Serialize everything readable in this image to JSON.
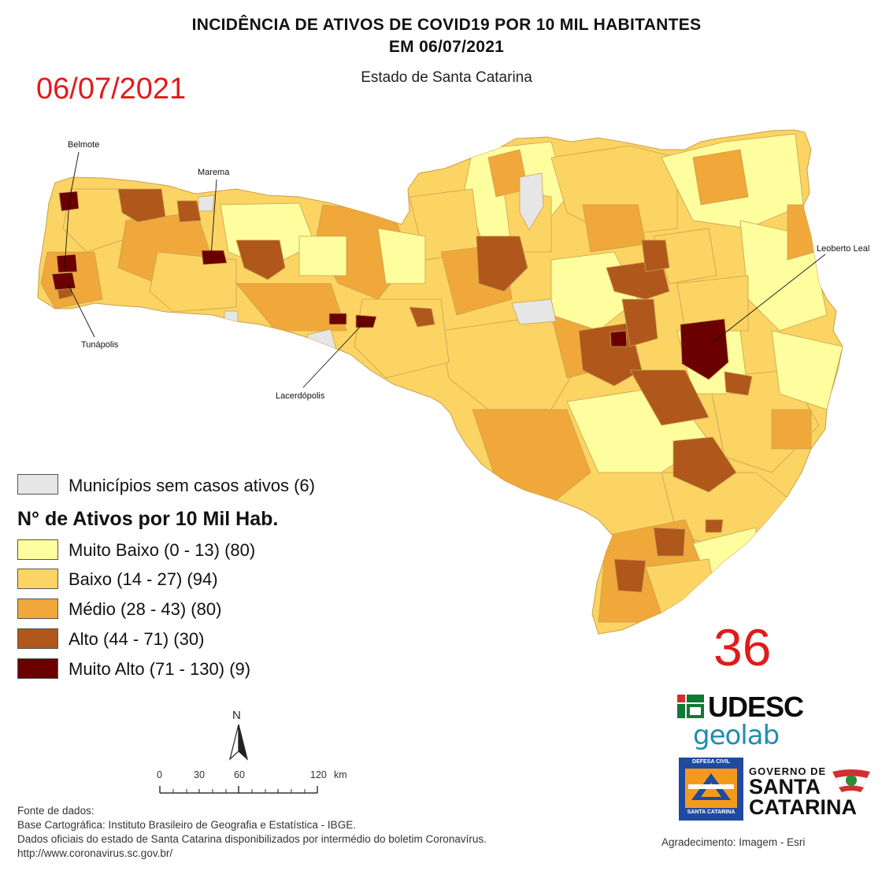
{
  "title_line1": "INCIDÊNCIA DE ATIVOS DE COVID19 POR 10 MIL HABITANTES",
  "title_line2": "EM 06/07/2021",
  "subtitle": "Estado de Santa Catarina",
  "date_stamp": "06/07/2021",
  "big_number": "36",
  "callouts": {
    "belmote": "Belmote",
    "marema": "Marema",
    "leoberto_leal": "Leoberto Leal",
    "tunapolis": "Tunápolis",
    "lacerdopolis": "Lacerdópolis"
  },
  "legend": {
    "no_cases": "Municípios sem casos ativos (6)",
    "heading": "N° de Ativos por 10 Mil Hab.",
    "classes": [
      {
        "label": "Muito Baixo (0 - 13) (80)",
        "color": "#fefe9e"
      },
      {
        "label": "Baixo (14 - 27) (94)",
        "color": "#fbd463"
      },
      {
        "label": "Médio (28 - 43) (80)",
        "color": "#f0a83a"
      },
      {
        "label": "Alto (44 - 71) (30)",
        "color": "#b0581c"
      },
      {
        "label": "Muito Alto (71 - 130) (9)",
        "color": "#6b0000"
      }
    ],
    "no_cases_color": "#e6e6e6"
  },
  "north_label": "N",
  "scale": {
    "t0": "0",
    "t30": "30",
    "t60": "60",
    "t120": "120",
    "unit": "km"
  },
  "logos": {
    "udesc": "UDESC",
    "geolab": "geolab",
    "defesa_top": "DEFESA CIVIL",
    "defesa_bottom": "SANTA CATARINA",
    "gov_line1": "GOVERNO DE",
    "gov_line2": "SANTA",
    "gov_line3": "CATARINA"
  },
  "sources": {
    "l1": "Fonte de dados:",
    "l2": "Base Cartográfica: Instituto Brasileiro de Geografia e Estatística - IBGE.",
    "l3": "Dados oficiais do estado de Santa Catarina disponibilizados por intermédio do boletim Coronavírus.",
    "l4": "http://www.coronavirus.sc.gov.br/"
  },
  "credit": "Agradecimento: Imagem - Esri"
}
